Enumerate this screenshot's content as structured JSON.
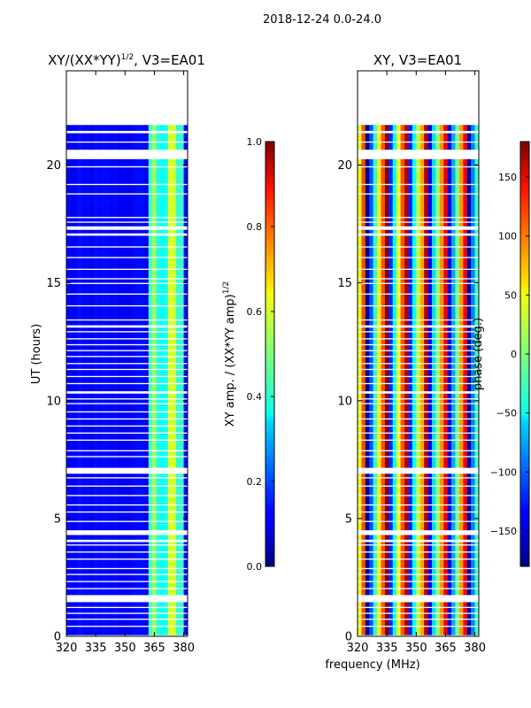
{
  "figure": {
    "suptitle": "2018-12-24 0.0-24.0",
    "xlabel_shared": "frequency (MHz)"
  },
  "chart_data": [
    {
      "type": "heatmap",
      "title_main": "XY/(XX*YY)",
      "title_sup": "1/2",
      "title_rest": ", V3=EA01",
      "ylabel": "UT (hours)",
      "xlim": [
        320,
        382
      ],
      "ylim": [
        0,
        24
      ],
      "xticks": [
        320,
        335,
        350,
        365,
        380
      ],
      "yticks": [
        0,
        5,
        10,
        15,
        20
      ],
      "colormap": "jet",
      "colorbar": {
        "label_main": "XY amp. / (XX*YY amp)",
        "label_sup": "1/2",
        "range": [
          0.0,
          1.0
        ],
        "ticks": [
          "0.0",
          "0.2",
          "0.4",
          "0.6",
          "0.8",
          "1.0"
        ]
      },
      "bright_band_mhz": [
        363,
        380
      ],
      "typical_level": 0.1,
      "band_level": 0.45
    },
    {
      "type": "heatmap",
      "title": "XY, V3=EA01",
      "xlim": [
        320,
        382
      ],
      "ylim": [
        0,
        24
      ],
      "xticks": [
        320,
        335,
        350,
        365,
        380
      ],
      "yticks": [
        0,
        5,
        10,
        15,
        20
      ],
      "colormap": "jet",
      "colorbar": {
        "label": "phase (deg.)",
        "range": [
          -180,
          180
        ],
        "ticks": [
          "−150",
          "−100",
          "−50",
          "0",
          "50",
          "100",
          "150"
        ]
      },
      "phase_slope_deg_per_mhz": 35,
      "center_mhz": 350.5
    }
  ],
  "data_gaps_ut": [
    [
      0.0,
      0.05
    ],
    [
      0.4,
      0.45
    ],
    [
      0.7,
      0.75
    ],
    [
      0.95,
      1.0
    ],
    [
      1.2,
      1.25
    ],
    [
      1.45,
      1.75
    ],
    [
      2.0,
      2.05
    ],
    [
      2.3,
      2.35
    ],
    [
      2.6,
      2.65
    ],
    [
      2.85,
      2.9
    ],
    [
      3.25,
      3.3
    ],
    [
      3.55,
      3.6
    ],
    [
      3.85,
      3.9
    ],
    [
      4.0,
      4.1
    ],
    [
      4.3,
      4.5
    ],
    [
      4.85,
      4.9
    ],
    [
      5.25,
      5.3
    ],
    [
      5.55,
      5.6
    ],
    [
      5.95,
      6.0
    ],
    [
      6.35,
      6.4
    ],
    [
      6.7,
      6.75
    ],
    [
      6.9,
      7.15
    ],
    [
      7.6,
      7.65
    ],
    [
      7.85,
      7.9
    ],
    [
      8.3,
      8.35
    ],
    [
      8.6,
      8.65
    ],
    [
      8.9,
      8.95
    ],
    [
      9.2,
      9.25
    ],
    [
      9.5,
      9.55
    ],
    [
      9.85,
      9.9
    ],
    [
      10.05,
      10.1
    ],
    [
      10.3,
      10.4
    ],
    [
      10.7,
      10.75
    ],
    [
      11.0,
      11.05
    ],
    [
      11.3,
      11.35
    ],
    [
      11.55,
      11.6
    ],
    [
      11.85,
      11.9
    ],
    [
      12.1,
      12.15
    ],
    [
      12.35,
      12.4
    ],
    [
      12.6,
      12.65
    ],
    [
      12.9,
      12.95
    ],
    [
      13.1,
      13.2
    ],
    [
      13.4,
      13.45
    ],
    [
      14.0,
      14.05
    ],
    [
      14.5,
      14.55
    ],
    [
      14.95,
      15.0
    ],
    [
      15.15,
      15.2
    ],
    [
      15.55,
      15.6
    ],
    [
      16.05,
      16.1
    ],
    [
      16.5,
      16.55
    ],
    [
      17.0,
      17.1
    ],
    [
      17.25,
      17.4
    ],
    [
      17.55,
      17.6
    ],
    [
      17.75,
      17.8
    ],
    [
      18.75,
      18.8
    ],
    [
      19.15,
      19.2
    ],
    [
      19.9,
      19.95
    ],
    [
      20.25,
      20.65
    ],
    [
      20.95,
      21.0
    ],
    [
      21.35,
      21.45
    ],
    [
      21.7,
      24.0
    ]
  ]
}
